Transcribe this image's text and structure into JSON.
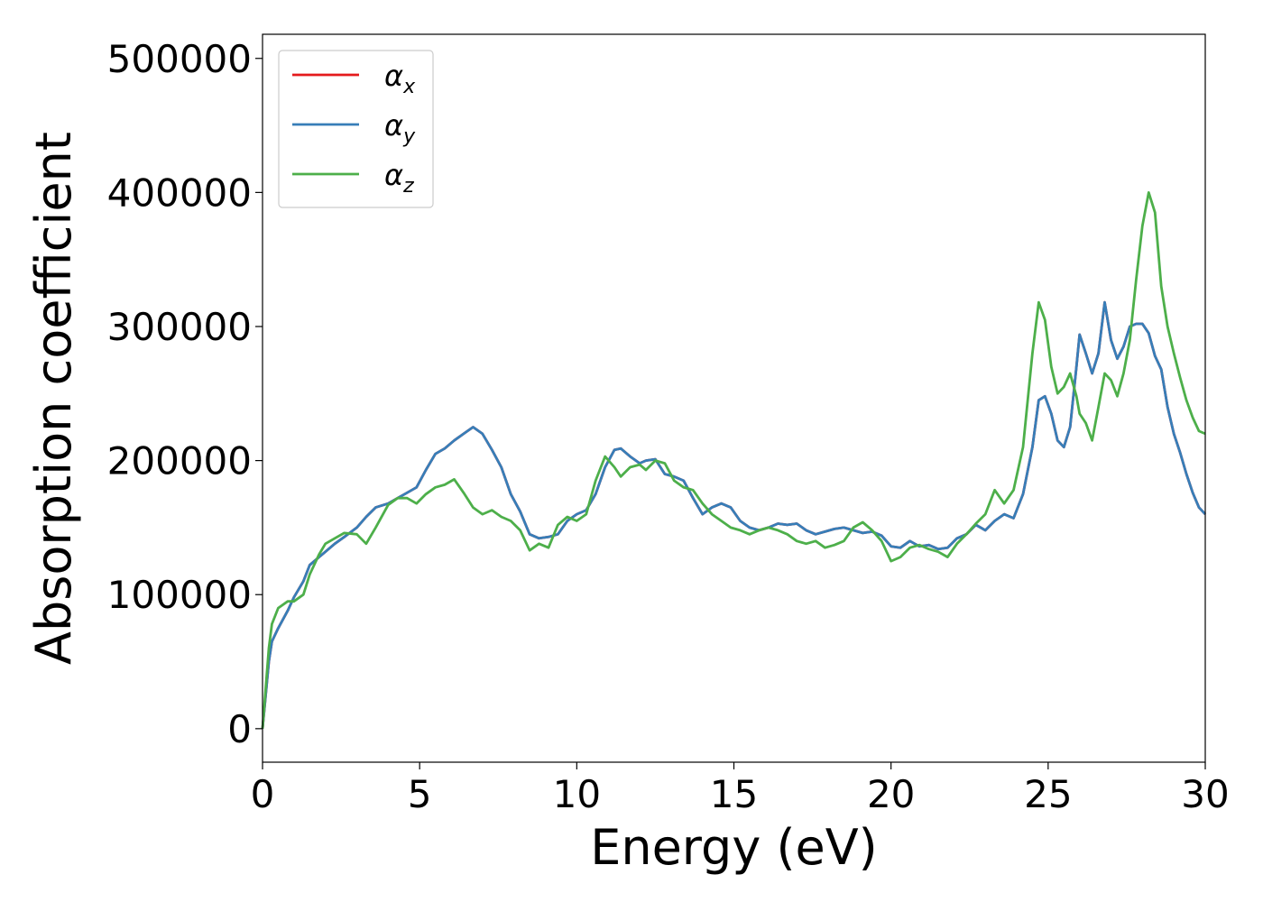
{
  "chart_data": {
    "type": "line",
    "xlabel": "Energy (eV)",
    "ylabel": "Absorption coefficient",
    "xlim": [
      0,
      30
    ],
    "ylim": [
      -25000,
      518000
    ],
    "xticks": [
      0,
      5,
      10,
      15,
      20,
      25,
      30
    ],
    "yticks": [
      0,
      100000,
      200000,
      300000,
      400000,
      500000
    ],
    "grid": false,
    "legend_position": "top-left",
    "series": [
      {
        "name": "αx",
        "symbol": "α",
        "subscript": "x",
        "color": "#e41a1c",
        "x": [
          0,
          0.1,
          0.2,
          0.3,
          0.5,
          0.8,
          1.0,
          1.3,
          1.5,
          1.8,
          2.0,
          2.3,
          2.6,
          3.0,
          3.3,
          3.6,
          4.0,
          4.3,
          4.6,
          4.9,
          5.2,
          5.5,
          5.8,
          6.1,
          6.4,
          6.7,
          7.0,
          7.3,
          7.6,
          7.9,
          8.2,
          8.5,
          8.8,
          9.1,
          9.4,
          9.7,
          10.0,
          10.3,
          10.6,
          10.9,
          11.2,
          11.4,
          11.7,
          12.0,
          12.2,
          12.5,
          12.8,
          13.1,
          13.4,
          13.7,
          14.0,
          14.3,
          14.6,
          14.9,
          15.2,
          15.5,
          15.8,
          16.1,
          16.4,
          16.7,
          17.0,
          17.3,
          17.6,
          17.9,
          18.2,
          18.5,
          18.8,
          19.1,
          19.4,
          19.7,
          20.0,
          20.3,
          20.6,
          20.9,
          21.2,
          21.5,
          21.8,
          22.1,
          22.4,
          22.7,
          23.0,
          23.3,
          23.6,
          23.9,
          24.2,
          24.5,
          24.7,
          24.9,
          25.1,
          25.3,
          25.5,
          25.7,
          25.9,
          26.0,
          26.2,
          26.4,
          26.6,
          26.8,
          27.0,
          27.2,
          27.4,
          27.6,
          27.8,
          28.0,
          28.2,
          28.4,
          28.6,
          28.8,
          29.0,
          29.2,
          29.4,
          29.6,
          29.8,
          30.0
        ],
        "y": [
          0,
          25000,
          50000,
          65000,
          75000,
          88000,
          98000,
          110000,
          122000,
          128000,
          132000,
          138000,
          143000,
          150000,
          158000,
          165000,
          168000,
          172000,
          176000,
          180000,
          193000,
          205000,
          209000,
          215000,
          220000,
          225000,
          220000,
          208000,
          195000,
          175000,
          162000,
          145000,
          142000,
          143000,
          145000,
          155000,
          160000,
          163000,
          175000,
          195000,
          208000,
          209000,
          203000,
          198000,
          200000,
          201000,
          190000,
          188000,
          185000,
          172000,
          160000,
          165000,
          168000,
          165000,
          155000,
          150000,
          148000,
          150000,
          153000,
          152000,
          153000,
          148000,
          145000,
          147000,
          149000,
          150000,
          148000,
          146000,
          147000,
          144000,
          136000,
          135000,
          140000,
          136000,
          137000,
          134000,
          135000,
          142000,
          145000,
          152000,
          148000,
          155000,
          160000,
          157000,
          175000,
          210000,
          245000,
          248000,
          235000,
          215000,
          210000,
          225000,
          270000,
          294000,
          280000,
          265000,
          280000,
          318000,
          290000,
          276000,
          285000,
          300000,
          302000,
          302000,
          295000,
          278000,
          268000,
          240000,
          220000,
          206000,
          190000,
          176000,
          165000,
          160000
        ]
      },
      {
        "name": "αy",
        "symbol": "α",
        "subscript": "y",
        "color": "#377eb8",
        "x": [
          0,
          0.1,
          0.2,
          0.3,
          0.5,
          0.8,
          1.0,
          1.3,
          1.5,
          1.8,
          2.0,
          2.3,
          2.6,
          3.0,
          3.3,
          3.6,
          4.0,
          4.3,
          4.6,
          4.9,
          5.2,
          5.5,
          5.8,
          6.1,
          6.4,
          6.7,
          7.0,
          7.3,
          7.6,
          7.9,
          8.2,
          8.5,
          8.8,
          9.1,
          9.4,
          9.7,
          10.0,
          10.3,
          10.6,
          10.9,
          11.2,
          11.4,
          11.7,
          12.0,
          12.2,
          12.5,
          12.8,
          13.1,
          13.4,
          13.7,
          14.0,
          14.3,
          14.6,
          14.9,
          15.2,
          15.5,
          15.8,
          16.1,
          16.4,
          16.7,
          17.0,
          17.3,
          17.6,
          17.9,
          18.2,
          18.5,
          18.8,
          19.1,
          19.4,
          19.7,
          20.0,
          20.3,
          20.6,
          20.9,
          21.2,
          21.5,
          21.8,
          22.1,
          22.4,
          22.7,
          23.0,
          23.3,
          23.6,
          23.9,
          24.2,
          24.5,
          24.7,
          24.9,
          25.1,
          25.3,
          25.5,
          25.7,
          25.9,
          26.0,
          26.2,
          26.4,
          26.6,
          26.8,
          27.0,
          27.2,
          27.4,
          27.6,
          27.8,
          28.0,
          28.2,
          28.4,
          28.6,
          28.8,
          29.0,
          29.2,
          29.4,
          29.6,
          29.8,
          30.0
        ],
        "y": [
          0,
          25000,
          50000,
          65000,
          75000,
          88000,
          98000,
          110000,
          122000,
          128000,
          132000,
          138000,
          143000,
          150000,
          158000,
          165000,
          168000,
          172000,
          176000,
          180000,
          193000,
          205000,
          209000,
          215000,
          220000,
          225000,
          220000,
          208000,
          195000,
          175000,
          162000,
          145000,
          142000,
          143000,
          145000,
          155000,
          160000,
          163000,
          175000,
          195000,
          208000,
          209000,
          203000,
          198000,
          200000,
          201000,
          190000,
          188000,
          185000,
          172000,
          160000,
          165000,
          168000,
          165000,
          155000,
          150000,
          148000,
          150000,
          153000,
          152000,
          153000,
          148000,
          145000,
          147000,
          149000,
          150000,
          148000,
          146000,
          147000,
          144000,
          136000,
          135000,
          140000,
          136000,
          137000,
          134000,
          135000,
          142000,
          145000,
          152000,
          148000,
          155000,
          160000,
          157000,
          175000,
          210000,
          245000,
          248000,
          235000,
          215000,
          210000,
          225000,
          270000,
          294000,
          280000,
          265000,
          280000,
          318000,
          290000,
          276000,
          285000,
          300000,
          302000,
          302000,
          295000,
          278000,
          268000,
          240000,
          220000,
          206000,
          190000,
          176000,
          165000,
          160000
        ]
      },
      {
        "name": "αz",
        "symbol": "α",
        "subscript": "z",
        "color": "#4daf4a",
        "x": [
          0,
          0.1,
          0.2,
          0.3,
          0.5,
          0.8,
          1.0,
          1.3,
          1.5,
          1.8,
          2.0,
          2.3,
          2.6,
          3.0,
          3.3,
          3.6,
          4.0,
          4.3,
          4.6,
          4.9,
          5.2,
          5.5,
          5.8,
          6.1,
          6.4,
          6.7,
          7.0,
          7.3,
          7.6,
          7.9,
          8.2,
          8.5,
          8.8,
          9.1,
          9.4,
          9.7,
          10.0,
          10.3,
          10.6,
          10.9,
          11.2,
          11.4,
          11.7,
          12.0,
          12.2,
          12.5,
          12.8,
          13.1,
          13.4,
          13.7,
          14.0,
          14.3,
          14.6,
          14.9,
          15.2,
          15.5,
          15.8,
          16.1,
          16.4,
          16.7,
          17.0,
          17.3,
          17.6,
          17.9,
          18.2,
          18.5,
          18.8,
          19.1,
          19.4,
          19.7,
          20.0,
          20.3,
          20.6,
          20.9,
          21.2,
          21.5,
          21.8,
          22.1,
          22.4,
          22.7,
          23.0,
          23.3,
          23.6,
          23.9,
          24.2,
          24.5,
          24.7,
          24.9,
          25.1,
          25.3,
          25.5,
          25.7,
          25.9,
          26.0,
          26.2,
          26.4,
          26.6,
          26.8,
          27.0,
          27.2,
          27.4,
          27.6,
          27.8,
          28.0,
          28.2,
          28.4,
          28.6,
          28.8,
          29.0,
          29.2,
          29.4,
          29.6,
          29.8,
          30.0
        ],
        "y": [
          0,
          30000,
          60000,
          78000,
          90000,
          95000,
          95000,
          100000,
          115000,
          130000,
          138000,
          142000,
          146000,
          145000,
          138000,
          150000,
          167000,
          172000,
          172000,
          168000,
          175000,
          180000,
          182000,
          186000,
          176000,
          165000,
          160000,
          163000,
          158000,
          155000,
          148000,
          133000,
          138000,
          135000,
          152000,
          158000,
          155000,
          160000,
          185000,
          203000,
          195000,
          188000,
          195000,
          197000,
          193000,
          200000,
          198000,
          185000,
          180000,
          178000,
          168000,
          160000,
          155000,
          150000,
          148000,
          145000,
          148000,
          150000,
          148000,
          145000,
          140000,
          138000,
          140000,
          135000,
          137000,
          140000,
          150000,
          154000,
          148000,
          140000,
          125000,
          128000,
          135000,
          137000,
          134000,
          132000,
          128000,
          138000,
          145000,
          153000,
          160000,
          178000,
          168000,
          178000,
          210000,
          280000,
          318000,
          305000,
          270000,
          250000,
          255000,
          265000,
          248000,
          235000,
          228000,
          215000,
          240000,
          265000,
          260000,
          248000,
          265000,
          290000,
          335000,
          375000,
          400000,
          385000,
          330000,
          300000,
          280000,
          262000,
          245000,
          232000,
          222000,
          220000
        ]
      }
    ]
  }
}
